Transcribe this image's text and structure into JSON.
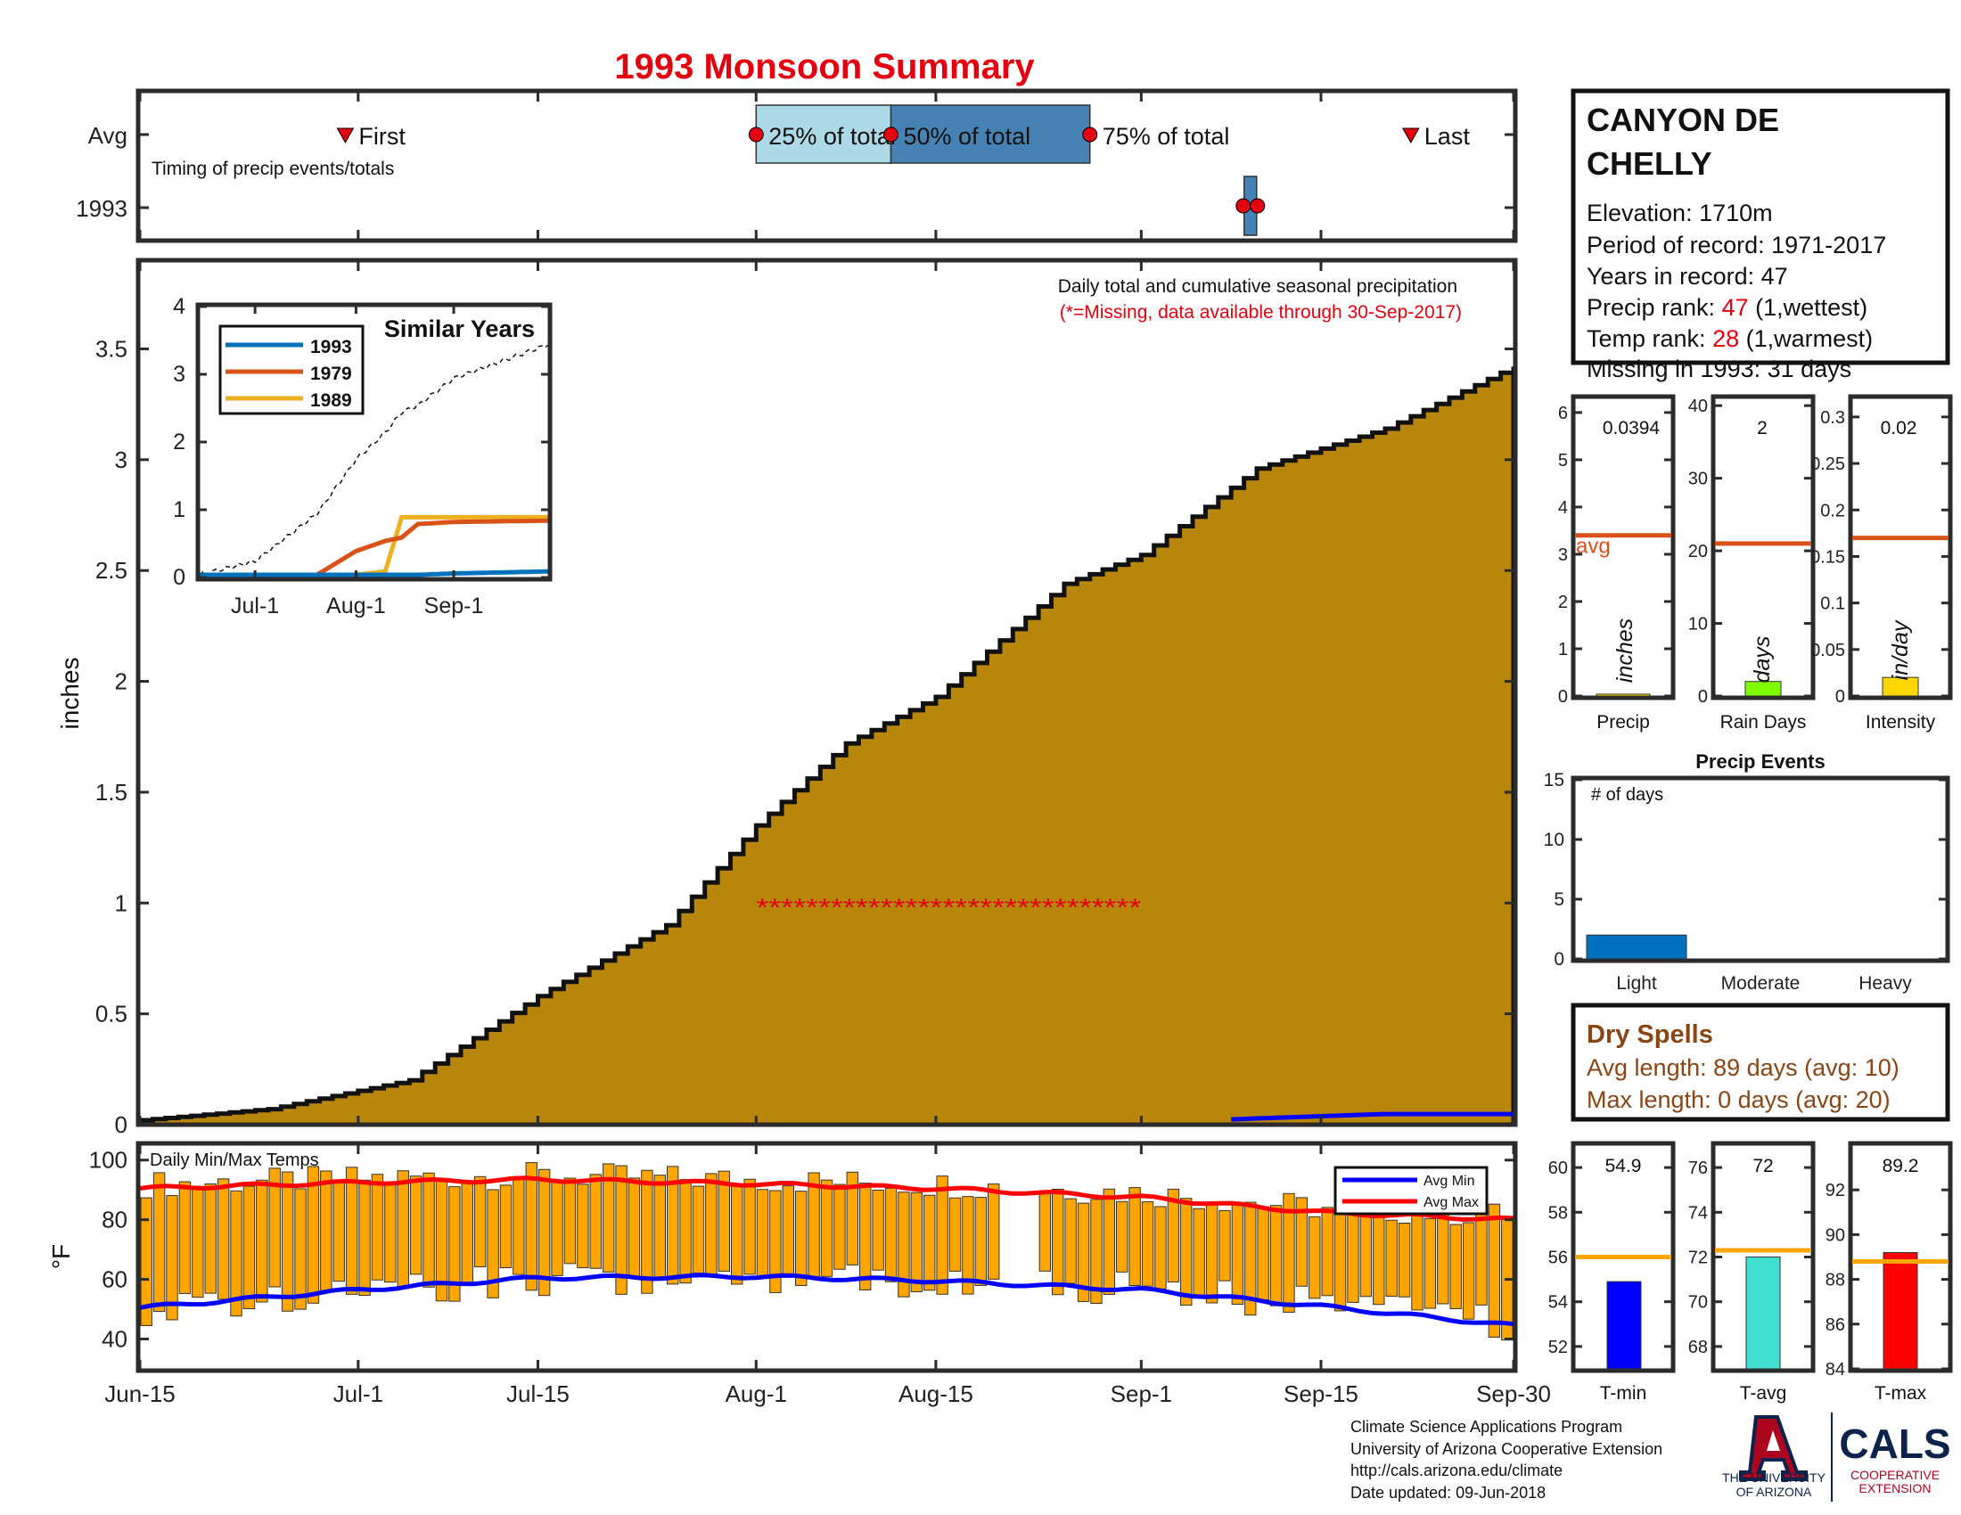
{
  "title": "1993 Monsoon Summary",
  "colors": {
    "title": "#e3000f",
    "fill": "#b8860b",
    "frame": "#2b2b2b",
    "q_light": "#add8e6",
    "q_dark": "#4682b4",
    "marker": "#e3000f",
    "s1993": "#0072bd",
    "s1979": "#d95319",
    "s1989": "#edb120",
    "avg_line": "#d95319",
    "temp_bar": "#ffa500",
    "avg_min": "#0000ff",
    "avg_max": "#ff0000",
    "dry": "#8b4513",
    "tmin": "#0000ff",
    "tavg": "#40e0d0",
    "tmax": "#ff0000",
    "rain_bar": "#7fff00",
    "int_bar": "#ffd700",
    "event_bar": "#0072bd",
    "tavgline": "#ffa500",
    "logo_navy": "#0c234b",
    "logo_red": "#ab0520"
  },
  "timing": {
    "row_avg": "Avg",
    "row_year": "1993",
    "subtitle": "Timing of precip events/totals",
    "first": "First",
    "q25": "25% of total",
    "q50": "50% of total",
    "q75": "75% of total",
    "last": "Last",
    "avg_first_day": 16,
    "avg_q25_day": 48,
    "avg_q50_day": 58.5,
    "avg_q75_day": 74,
    "avg_last_day": 99,
    "year_q_day": 86.5
  },
  "station": {
    "name_line1": "CANYON DE",
    "name_line2": "CHELLY",
    "elevation": "Elevation: 1710m",
    "period": "Period of record: 1971-2017",
    "years": "Years in record: 47",
    "precip_rank_label": "Precip rank: ",
    "precip_rank_value": "47",
    "precip_rank_note": " (1,wettest)",
    "temp_rank_label": "Temp rank: ",
    "temp_rank_value": "28",
    "temp_rank_note": " (1,warmest)",
    "missing": "Missing in 1993: 31 days"
  },
  "main": {
    "ylabel": "inches",
    "note": "Daily total and cumulative seasonal precipitation",
    "missing_note": "(*=Missing, data available through 30-Sep-2017)",
    "ytick_labels": [
      "0",
      "0.5",
      "1",
      "1.5",
      "2",
      "2.5",
      "3",
      "3.5"
    ],
    "xtick_labels": [
      "Jun-15",
      "Jul-1",
      "Jul-15",
      "Aug-1",
      "Aug-15",
      "Sep-1",
      "Sep-15",
      "Sep-30"
    ]
  },
  "inset": {
    "title": "Similar Years",
    "legend": [
      "1993",
      "1979",
      "1989"
    ],
    "ytick_labels": [
      "0",
      "1",
      "2",
      "3",
      "4"
    ],
    "xtick_labels": [
      "Jul-1",
      "Aug-1",
      "Sep-1"
    ]
  },
  "stats": {
    "precip_value": "0.0394",
    "precip_unit": "inches",
    "precip_label": "Precip",
    "precip_avg_label": "avg",
    "rain_value": "2",
    "rain_unit": "days",
    "rain_label": "Rain Days",
    "int_value": "0.02",
    "int_unit": "in/day",
    "int_label": "Intensity",
    "precip_ticks": [
      "0",
      "1",
      "2",
      "3",
      "4",
      "5",
      "6"
    ],
    "rain_ticks": [
      "0",
      "10",
      "20",
      "30",
      "40"
    ],
    "int_ticks": [
      "0",
      "0.05",
      "0.1",
      "0.15",
      "0.2",
      "0.25",
      "0.3"
    ]
  },
  "events": {
    "title": "Precip Events",
    "ylabel": "# of days",
    "categories": [
      "Light",
      "Moderate",
      "Heavy"
    ],
    "ticks": [
      "0",
      "5",
      "10",
      "15"
    ]
  },
  "dry": {
    "title": "Dry Spells",
    "avg": "Avg length: 89 days (avg: 10)",
    "max": "Max length: 0 days (avg: 20)"
  },
  "temps": {
    "ylabel": "°F",
    "title": "Daily Min/Max Temps",
    "legend_min": "Avg Min",
    "legend_max": "Avg Max",
    "ytick_labels": [
      "40",
      "60",
      "80",
      "100"
    ]
  },
  "tstats": {
    "tmin_value": "54.9",
    "tmin_label": "T-min",
    "tavg_value": "72",
    "tavg_label": "T-avg",
    "tmax_value": "89.2",
    "tmax_label": "T-max",
    "tmin_ticks": [
      "52",
      "54",
      "56",
      "58",
      "60"
    ],
    "tavg_ticks": [
      "68",
      "70",
      "72",
      "74",
      "76"
    ],
    "tmax_ticks": [
      "84",
      "86",
      "88",
      "90",
      "92"
    ]
  },
  "footer": {
    "line1": "Climate Science Applications Program",
    "line2": "University of Arizona Cooperative Extension",
    "line3": "http://cals.arizona.edu/climate",
    "line4": " Date updated: 09-Jun-2018",
    "logo_univ1": "THE UNIVERSITY",
    "logo_univ2": "OF ARIZONA",
    "logo_cals": "CALS",
    "logo_coop1": "COOPERATIVE",
    "logo_coop2": "EXTENSION"
  },
  "chart_data": [
    {
      "type": "area",
      "title": "Daily total and cumulative seasonal precipitation",
      "ylabel": "inches",
      "x_start": "Jun-15",
      "x_end": "Sep-30",
      "ylim": [
        0,
        3.9
      ],
      "x_dates": [
        "Jun-15",
        "Jun-25",
        "Jul-5",
        "Jul-15",
        "Jul-25",
        "Aug-1",
        "Aug-8",
        "Aug-15",
        "Aug-25",
        "Sep-1",
        "Sep-10",
        "Sep-20",
        "Sep-30"
      ],
      "cumulative_avg_inches": [
        0.02,
        0.07,
        0.2,
        0.58,
        0.9,
        1.35,
        1.72,
        1.93,
        2.44,
        2.57,
        2.96,
        3.14,
        3.42
      ],
      "series_1993_inches": [
        0,
        0,
        0,
        0,
        0,
        0,
        0,
        0,
        0,
        0,
        0.02,
        0.04,
        0.04
      ],
      "missing_marker_value": 1,
      "missing_from": "Aug-1",
      "missing_to": "Aug-31"
    },
    {
      "type": "line",
      "title": "Similar Years",
      "x_dates": [
        "Jun-15",
        "Jul-1",
        "Jul-20",
        "Aug-1",
        "Aug-10",
        "Aug-15",
        "Aug-20",
        "Sep-1",
        "Sep-30"
      ],
      "ylim": [
        0,
        4
      ],
      "average_inches": [
        0.0,
        0.2,
        0.9,
        1.7,
        2.1,
        2.4,
        2.5,
        2.9,
        3.4
      ],
      "series": [
        {
          "name": "1993",
          "values": [
            0,
            0,
            0,
            0,
            0,
            0,
            0,
            0.02,
            0.05
          ]
        },
        {
          "name": "1979",
          "values": [
            0,
            0,
            0,
            0.35,
            0.5,
            0.55,
            0.75,
            0.78,
            0.8
          ]
        },
        {
          "name": "1989",
          "values": [
            0,
            0,
            0,
            0,
            0.05,
            0.85,
            0.85,
            0.85,
            0.85
          ]
        }
      ]
    },
    {
      "type": "bar",
      "title": "Precip",
      "categories": [
        "Precip",
        "Rain Days",
        "Intensity"
      ],
      "values": [
        0.0394,
        2,
        0.02
      ],
      "averages": [
        3.4,
        21,
        0.17
      ],
      "ylims": [
        [
          0,
          6.3
        ],
        [
          0,
          41
        ],
        [
          0,
          0.32
        ]
      ]
    },
    {
      "type": "bar",
      "title": "Precip Events",
      "categories": [
        "Light",
        "Moderate",
        "Heavy"
      ],
      "values": [
        2,
        0,
        0
      ],
      "ylim": [
        0,
        15
      ]
    },
    {
      "type": "line",
      "title": "Daily Min/Max Temps",
      "ylabel": "°F",
      "ylim": [
        30,
        105
      ],
      "x_dates": [
        "Jun-15",
        "Jul-1",
        "Jul-15",
        "Aug-1",
        "Aug-15",
        "Sep-1",
        "Sep-15",
        "Sep-30"
      ],
      "series": [
        {
          "name": "Avg Min",
          "values": [
            50.5,
            56.5,
            60.5,
            61.0,
            59.5,
            56.5,
            51.0,
            44.5
          ]
        },
        {
          "name": "Avg Max",
          "values": [
            90.5,
            92.5,
            93.5,
            92.0,
            90.5,
            87.5,
            82.5,
            80.0
          ]
        }
      ]
    },
    {
      "type": "bar",
      "title": "T-min / T-avg / T-max",
      "categories": [
        "T-min",
        "T-avg",
        "T-max"
      ],
      "values": [
        54.9,
        72,
        89.2
      ],
      "averages": [
        56,
        72.3,
        88.8
      ],
      "ylims": [
        [
          51,
          61
        ],
        [
          67,
          77
        ],
        [
          84,
          94
        ]
      ]
    }
  ]
}
